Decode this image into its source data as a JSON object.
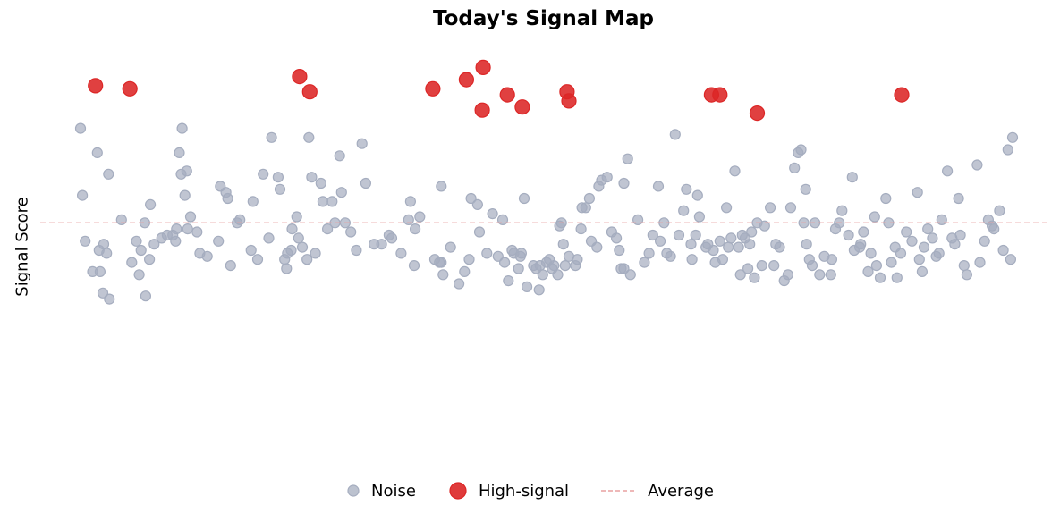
{
  "chart_data": {
    "type": "scatter",
    "title": "Today's Signal Map",
    "xlabel": "",
    "ylabel": "Signal Score",
    "xlim": [
      0,
      100
    ],
    "ylim": [
      0,
      100
    ],
    "grid": false,
    "legend_position": "bottom",
    "reference_line": {
      "name": "Average",
      "y": 48,
      "style": "dashed",
      "color": "#e8a0a0"
    },
    "series": [
      {
        "name": "Noise",
        "color": "#a5adbf",
        "points": [
          [
            0,
            79
          ],
          [
            0.2,
            57
          ],
          [
            0.5,
            42
          ],
          [
            1.3,
            32
          ],
          [
            1.8,
            71
          ],
          [
            2.0,
            39
          ],
          [
            2.1,
            32
          ],
          [
            2.4,
            25
          ],
          [
            2.5,
            41
          ],
          [
            2.8,
            38
          ],
          [
            3.1,
            23
          ],
          [
            3.0,
            64
          ],
          [
            4.4,
            49
          ],
          [
            5.5,
            35
          ],
          [
            6.0,
            42
          ],
          [
            6.3,
            31
          ],
          [
            6.5,
            39
          ],
          [
            6.9,
            48
          ],
          [
            7.4,
            36
          ],
          [
            7.0,
            24
          ],
          [
            7.5,
            54
          ],
          [
            7.9,
            41
          ],
          [
            8.7,
            43
          ],
          [
            9.3,
            44
          ],
          [
            9.9,
            44
          ],
          [
            10.2,
            42
          ],
          [
            10.3,
            46
          ],
          [
            10.6,
            71
          ],
          [
            10.9,
            79
          ],
          [
            10.8,
            64
          ],
          [
            11.2,
            57
          ],
          [
            11.4,
            65
          ],
          [
            11.5,
            46
          ],
          [
            11.8,
            50
          ],
          [
            12.5,
            45
          ],
          [
            12.8,
            38
          ],
          [
            13.6,
            37
          ],
          [
            14.8,
            42
          ],
          [
            15.0,
            60
          ],
          [
            15.6,
            58
          ],
          [
            15.8,
            56
          ],
          [
            16.1,
            34
          ],
          [
            16.8,
            48
          ],
          [
            17.1,
            49
          ],
          [
            18.3,
            39
          ],
          [
            18.5,
            55
          ],
          [
            19.0,
            36
          ],
          [
            19.6,
            64
          ],
          [
            20.2,
            43
          ],
          [
            20.5,
            76
          ],
          [
            21.2,
            63
          ],
          [
            21.4,
            59
          ],
          [
            21.9,
            36
          ],
          [
            22.1,
            33
          ],
          [
            22.2,
            38
          ],
          [
            22.6,
            39
          ],
          [
            22.7,
            46
          ],
          [
            23.2,
            50
          ],
          [
            23.4,
            43
          ],
          [
            23.8,
            40
          ],
          [
            24.3,
            36
          ],
          [
            24.5,
            76
          ],
          [
            24.8,
            63
          ],
          [
            25.2,
            38
          ],
          [
            25.8,
            61
          ],
          [
            26.0,
            55
          ],
          [
            26.5,
            46
          ],
          [
            27.0,
            55
          ],
          [
            27.3,
            48
          ],
          [
            27.8,
            70
          ],
          [
            28.0,
            58
          ],
          [
            28.4,
            48
          ],
          [
            29.0,
            45
          ],
          [
            29.6,
            39
          ],
          [
            30.2,
            74
          ],
          [
            30.6,
            61
          ],
          [
            31.5,
            41
          ],
          [
            32.3,
            41
          ],
          [
            33.1,
            44
          ],
          [
            33.4,
            43
          ],
          [
            34.4,
            38
          ],
          [
            35.2,
            49
          ],
          [
            35.4,
            55
          ],
          [
            35.9,
            46
          ],
          [
            35.8,
            34
          ],
          [
            36.4,
            50
          ],
          [
            38.0,
            36
          ],
          [
            38.5,
            35
          ],
          [
            38.7,
            35
          ],
          [
            38.9,
            31
          ],
          [
            38.7,
            60
          ],
          [
            39.7,
            40
          ],
          [
            40.6,
            28
          ],
          [
            41.2,
            32
          ],
          [
            41.7,
            36
          ],
          [
            41.9,
            56
          ],
          [
            42.6,
            54
          ],
          [
            42.8,
            45
          ],
          [
            43.6,
            38
          ],
          [
            44.2,
            51
          ],
          [
            44.8,
            37
          ],
          [
            45.3,
            49
          ],
          [
            45.5,
            35
          ],
          [
            45.9,
            29
          ],
          [
            46.3,
            39
          ],
          [
            46.5,
            38
          ],
          [
            47.2,
            37
          ],
          [
            47.6,
            56
          ],
          [
            47.0,
            33
          ],
          [
            47.3,
            38
          ],
          [
            47.9,
            27
          ],
          [
            48.6,
            34
          ],
          [
            48.9,
            33
          ],
          [
            49.2,
            26
          ],
          [
            49.6,
            31
          ],
          [
            49.3,
            34
          ],
          [
            50.0,
            35
          ],
          [
            50.3,
            36
          ],
          [
            50.8,
            34
          ],
          [
            50.6,
            33
          ],
          [
            51.2,
            31
          ],
          [
            51.4,
            47
          ],
          [
            51.6,
            48
          ],
          [
            51.8,
            41
          ],
          [
            52.0,
            34
          ],
          [
            52.4,
            37
          ],
          [
            53.1,
            34
          ],
          [
            53.3,
            36
          ],
          [
            53.7,
            46
          ],
          [
            53.8,
            53
          ],
          [
            54.2,
            53
          ],
          [
            54.6,
            56
          ],
          [
            54.8,
            42
          ],
          [
            55.4,
            40
          ],
          [
            55.6,
            60
          ],
          [
            55.9,
            62
          ],
          [
            56.5,
            63
          ],
          [
            57.0,
            45
          ],
          [
            57.5,
            43
          ],
          [
            57.8,
            39
          ],
          [
            58.0,
            33
          ],
          [
            58.3,
            33
          ],
          [
            58.3,
            61
          ],
          [
            58.7,
            69
          ],
          [
            59.0,
            31
          ],
          [
            59.8,
            49
          ],
          [
            60.5,
            35
          ],
          [
            61.0,
            38
          ],
          [
            61.4,
            44
          ],
          [
            62.0,
            60
          ],
          [
            62.2,
            42
          ],
          [
            62.6,
            48
          ],
          [
            62.9,
            38
          ],
          [
            63.3,
            37
          ],
          [
            63.8,
            77
          ],
          [
            64.2,
            44
          ],
          [
            64.7,
            52
          ],
          [
            65.0,
            59
          ],
          [
            65.5,
            41
          ],
          [
            65.6,
            36
          ],
          [
            66.0,
            44
          ],
          [
            66.2,
            57
          ],
          [
            66.4,
            50
          ],
          [
            67.1,
            40
          ],
          [
            67.3,
            41
          ],
          [
            67.9,
            39
          ],
          [
            68.1,
            35
          ],
          [
            68.6,
            42
          ],
          [
            68.9,
            36
          ],
          [
            69.3,
            53
          ],
          [
            69.5,
            40
          ],
          [
            69.8,
            43
          ],
          [
            70.2,
            65
          ],
          [
            70.6,
            40
          ],
          [
            70.8,
            31
          ],
          [
            71.0,
            44
          ],
          [
            71.3,
            43
          ],
          [
            71.6,
            33
          ],
          [
            71.8,
            41
          ],
          [
            72.0,
            45
          ],
          [
            72.3,
            30
          ],
          [
            72.6,
            48
          ],
          [
            73.1,
            34
          ],
          [
            73.4,
            47
          ],
          [
            74.0,
            53
          ],
          [
            74.4,
            34
          ],
          [
            74.6,
            41
          ],
          [
            75.0,
            40
          ],
          [
            75.5,
            29
          ],
          [
            75.9,
            31
          ],
          [
            76.2,
            53
          ],
          [
            76.6,
            66
          ],
          [
            77.0,
            71
          ],
          [
            77.3,
            72
          ],
          [
            77.6,
            48
          ],
          [
            77.8,
            59
          ],
          [
            77.9,
            41
          ],
          [
            78.2,
            36
          ],
          [
            78.5,
            34
          ],
          [
            78.8,
            48
          ],
          [
            79.3,
            31
          ],
          [
            79.8,
            37
          ],
          [
            80.5,
            31
          ],
          [
            80.6,
            36
          ],
          [
            81.0,
            46
          ],
          [
            81.4,
            48
          ],
          [
            81.7,
            52
          ],
          [
            82.4,
            44
          ],
          [
            82.8,
            63
          ],
          [
            83.0,
            39
          ],
          [
            83.6,
            40
          ],
          [
            83.7,
            41
          ],
          [
            84.0,
            45
          ],
          [
            84.5,
            32
          ],
          [
            84.8,
            38
          ],
          [
            85.2,
            50
          ],
          [
            85.4,
            34
          ],
          [
            85.8,
            30
          ],
          [
            86.4,
            56
          ],
          [
            86.7,
            48
          ],
          [
            87.0,
            35
          ],
          [
            87.4,
            40
          ],
          [
            87.6,
            30
          ],
          [
            88.0,
            38
          ],
          [
            88.6,
            45
          ],
          [
            89.2,
            42
          ],
          [
            89.8,
            58
          ],
          [
            90.0,
            36
          ],
          [
            90.3,
            32
          ],
          [
            90.5,
            40
          ],
          [
            90.9,
            46
          ],
          [
            91.4,
            43
          ],
          [
            91.8,
            37
          ],
          [
            92.1,
            38
          ],
          [
            92.4,
            49
          ],
          [
            93.0,
            65
          ],
          [
            93.5,
            43
          ],
          [
            93.8,
            41
          ],
          [
            94.2,
            56
          ],
          [
            94.4,
            44
          ],
          [
            94.8,
            34
          ],
          [
            95.1,
            31
          ],
          [
            96.2,
            67
          ],
          [
            96.5,
            35
          ],
          [
            97.0,
            42
          ],
          [
            97.4,
            49
          ],
          [
            97.8,
            47
          ],
          [
            98.0,
            46
          ],
          [
            98.6,
            52
          ],
          [
            99.0,
            39
          ],
          [
            99.5,
            72
          ],
          [
            99.8,
            36
          ],
          [
            100,
            76
          ]
        ]
      },
      {
        "name": "High-signal",
        "color": "#dc2626",
        "points": [
          [
            1.6,
            93
          ],
          [
            5.3,
            92
          ],
          [
            23.5,
            96
          ],
          [
            24.6,
            91
          ],
          [
            37.8,
            92
          ],
          [
            41.4,
            95
          ],
          [
            43.1,
            85
          ],
          [
            43.2,
            99
          ],
          [
            45.8,
            90
          ],
          [
            47.4,
            86
          ],
          [
            52.2,
            91
          ],
          [
            52.4,
            88
          ],
          [
            67.7,
            90
          ],
          [
            68.6,
            90
          ],
          [
            72.6,
            84
          ],
          [
            88.1,
            90
          ]
        ]
      }
    ]
  }
}
